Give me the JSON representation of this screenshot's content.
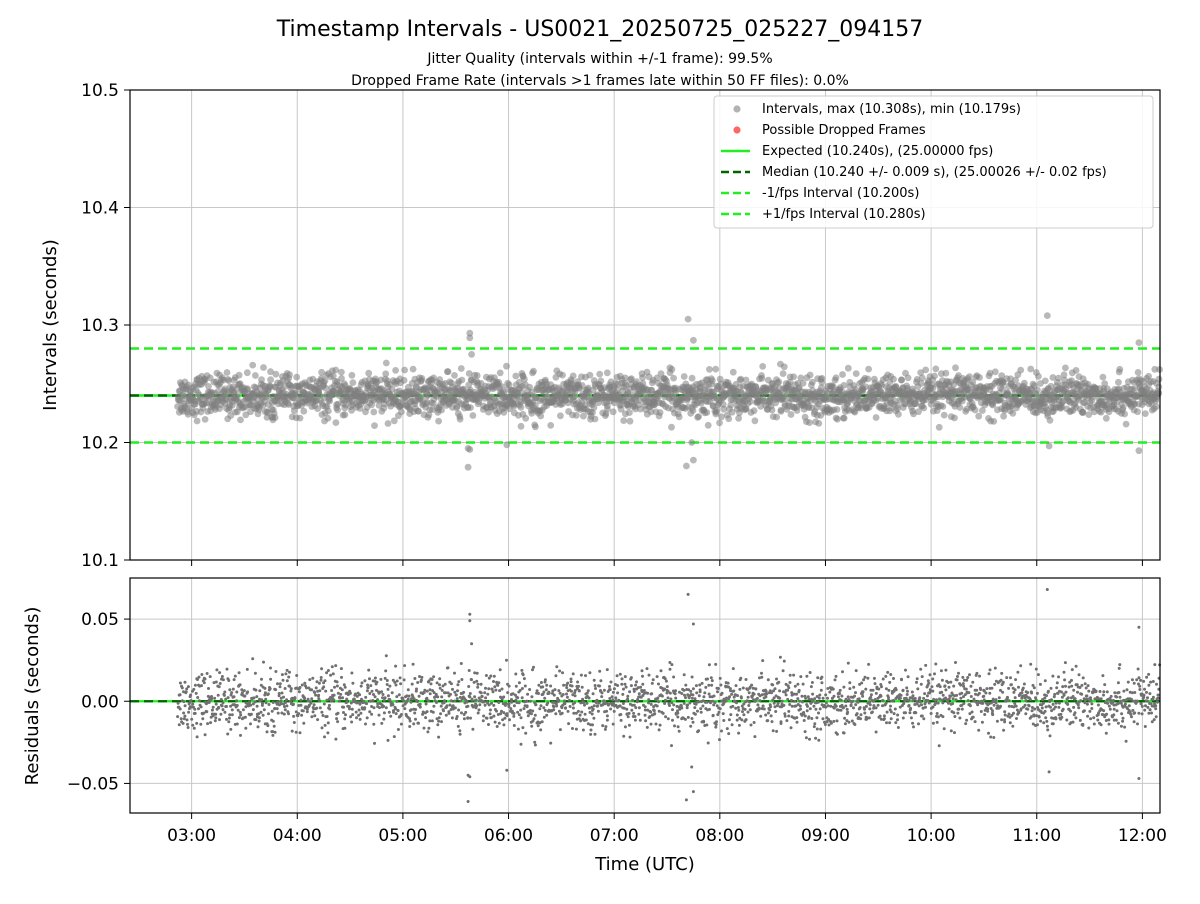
{
  "chart_data": [
    {
      "type": "scatter",
      "title": "Timestamp Intervals - US0021_20250725_025227_094157",
      "subtitle_lines": [
        "Jitter Quality (intervals within +/-1 frame): 99.5%",
        "Dropped Frame Rate (intervals >1 frames late within 50 FF files): 0.0%"
      ],
      "xlabel": "",
      "ylabel": "Intervals (seconds)",
      "xlim": [
        "02:25",
        "12:10"
      ],
      "ylim": [
        10.1,
        10.5
      ],
      "yticks": [
        "10.1",
        "10.2",
        "10.3",
        "10.4",
        "10.5"
      ],
      "yticks_values": [
        10.1,
        10.2,
        10.3,
        10.4,
        10.5
      ],
      "grid": true,
      "legend_position": "top-right",
      "reference_lines": [
        {
          "name": "Expected (10.240s), (25.00000 fps)",
          "y": 10.24,
          "color": "#22ee22",
          "style": "solid"
        },
        {
          "name": "Median (10.240 +/- 0.009 s), (25.00026 +/- 0.02 fps)",
          "y": 10.24,
          "color": "#006400",
          "style": "dashed"
        },
        {
          "name": "-1/fps Interval (10.200s)",
          "y": 10.2,
          "color": "#22ee22",
          "style": "dashed"
        },
        {
          "name": "+1/fps Interval (10.280s)",
          "y": 10.28,
          "color": "#22ee22",
          "style": "dashed"
        }
      ],
      "series": [
        {
          "name": "Intervals, max (10.308s), min (10.179s)",
          "color": "#808080",
          "x_start": "02:52",
          "x_end": "12:10",
          "median": 10.24,
          "stdev": 0.009,
          "max": 10.308,
          "min": 10.179,
          "notable_points": [
            {
              "x": "05:38",
              "y": 10.293
            },
            {
              "x": "05:38",
              "y": 10.289
            },
            {
              "x": "05:39",
              "y": 10.275
            },
            {
              "x": "05:37",
              "y": 10.195
            },
            {
              "x": "05:38",
              "y": 10.194
            },
            {
              "x": "05:37",
              "y": 10.179
            },
            {
              "x": "07:42",
              "y": 10.305
            },
            {
              "x": "07:45",
              "y": 10.287
            },
            {
              "x": "07:44",
              "y": 10.2
            },
            {
              "x": "07:45",
              "y": 10.185
            },
            {
              "x": "07:41",
              "y": 10.18
            },
            {
              "x": "11:06",
              "y": 10.308
            },
            {
              "x": "11:07",
              "y": 10.197
            },
            {
              "x": "11:58",
              "y": 10.285
            },
            {
              "x": "11:58",
              "y": 10.193
            },
            {
              "x": "05:59",
              "y": 10.198
            }
          ]
        },
        {
          "name": "Possible Dropped Frames",
          "color": "#ff6666",
          "points": []
        }
      ]
    },
    {
      "type": "scatter",
      "title": "",
      "xlabel": "Time (UTC)",
      "ylabel": "Residuals (seconds)",
      "xlim": [
        "02:25",
        "12:10"
      ],
      "ylim": [
        -0.068,
        0.075
      ],
      "xticks": [
        "03:00",
        "04:00",
        "05:00",
        "06:00",
        "07:00",
        "08:00",
        "09:00",
        "10:00",
        "11:00",
        "12:00"
      ],
      "yticks": [
        "−0.05",
        "0.00",
        "0.05"
      ],
      "yticks_values": [
        -0.05,
        0.0,
        0.05
      ],
      "grid": true,
      "reference_lines": [
        {
          "y": 0.0,
          "color": "#22ee22",
          "style": "solid"
        },
        {
          "y": 0.0,
          "color": "#006400",
          "style": "dashed"
        }
      ],
      "series": [
        {
          "color": "#707070",
          "derived_from": "interval - 10.240",
          "max": 0.068,
          "min": -0.061
        }
      ]
    }
  ]
}
